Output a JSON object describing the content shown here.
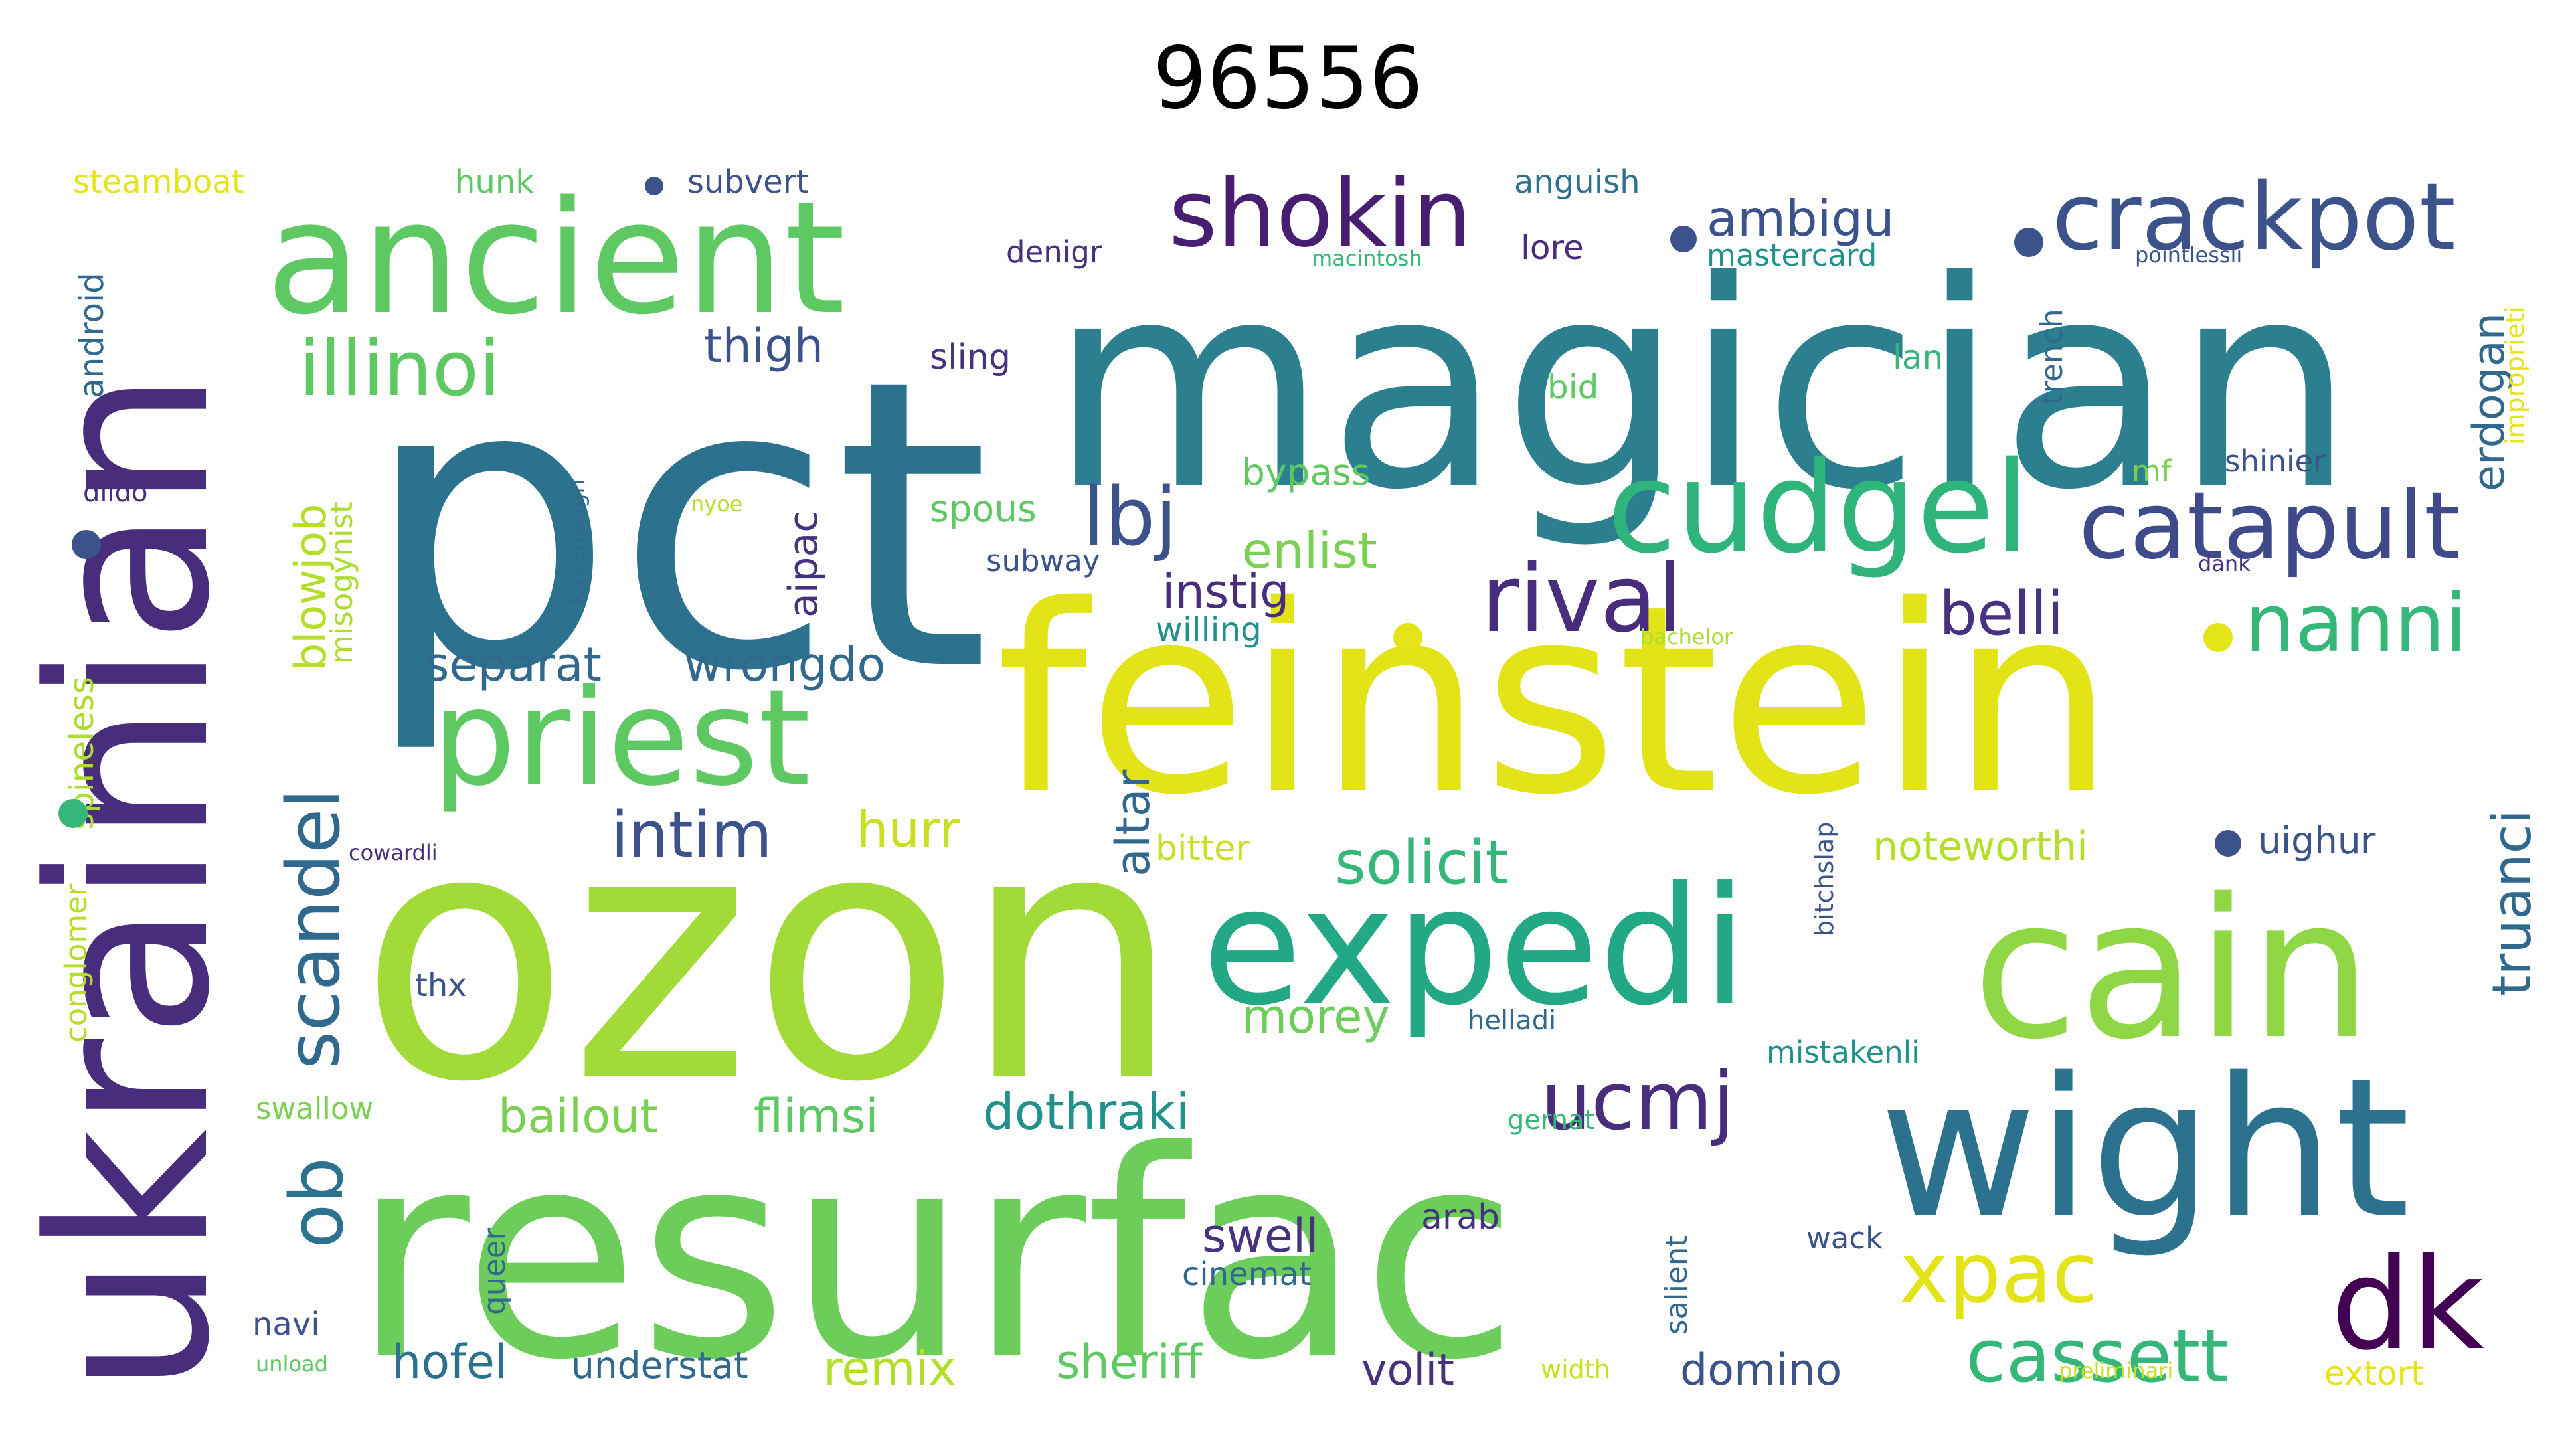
{
  "title": "96556",
  "palette": {
    "dark_purple": "#472d7b",
    "purple": "#46327e",
    "blue": "#3b528b",
    "teal_blue": "#2c728e",
    "teal": "#21918c",
    "green_teal": "#28ae80",
    "green": "#5ec962",
    "light_green": "#addc30",
    "yellow": "#e5e419"
  },
  "words": [
    {
      "text": "pct",
      "color": "#2c728e"
    },
    {
      "text": "magician",
      "color": "#2c7f8e"
    },
    {
      "text": "ozon",
      "color": "#a2da37"
    },
    {
      "text": "feinstein",
      "color": "#e2e418"
    },
    {
      "text": "resurfac",
      "color": "#6ccd5a"
    },
    {
      "text": "ukrainian",
      "color": "#472d7b"
    },
    {
      "text": "ancient",
      "color": "#5ec962"
    },
    {
      "text": "expedi",
      "color": "#22a884"
    },
    {
      "text": "cain",
      "color": "#8fd744"
    },
    {
      "text": "wight",
      "color": "#2c728e"
    },
    {
      "text": "priest",
      "color": "#5ec962"
    },
    {
      "text": "cudgel",
      "color": "#2fb47c"
    },
    {
      "text": "crackpot",
      "color": "#3b528b"
    },
    {
      "text": "catapult",
      "color": "#3e4a89"
    },
    {
      "text": "dk",
      "color": "#440154"
    },
    {
      "text": "shokin",
      "color": "#481f70"
    },
    {
      "text": "illinoi",
      "color": "#5ec962"
    },
    {
      "text": "rival",
      "color": "#472d7b"
    },
    {
      "text": "nanni",
      "color": "#35b779"
    },
    {
      "text": "lbj",
      "color": "#3b528b"
    },
    {
      "text": "ucmj",
      "color": "#472d7b"
    },
    {
      "text": "xpac",
      "color": "#e2e418"
    },
    {
      "text": "cassett",
      "color": "#35b779"
    },
    {
      "text": "scandel",
      "color": "#31688e"
    },
    {
      "text": "ob",
      "color": "#2c728e"
    },
    {
      "text": "blowjob",
      "color": "#b5de2b"
    },
    {
      "text": "truanci",
      "color": "#31688e"
    },
    {
      "text": "erdogan",
      "color": "#31688e"
    },
    {
      "text": "belli",
      "color": "#46327e"
    },
    {
      "text": "solicit",
      "color": "#35b779"
    },
    {
      "text": "intim",
      "color": "#3b528b"
    },
    {
      "text": "ambigu",
      "color": "#3b528b"
    },
    {
      "text": "thigh",
      "color": "#3b528b"
    },
    {
      "text": "enlist",
      "color": "#7ad151"
    },
    {
      "text": "instig",
      "color": "#472d7b"
    },
    {
      "text": "separat",
      "color": "#31688e"
    },
    {
      "text": "wrongdo",
      "color": "#31688e"
    },
    {
      "text": "hurr",
      "color": "#c8e020"
    },
    {
      "text": "altar",
      "color": "#31688e"
    },
    {
      "text": "aipac",
      "color": "#46327e"
    },
    {
      "text": "morey",
      "color": "#6ccd5a"
    },
    {
      "text": "dothraki",
      "color": "#21918c"
    },
    {
      "text": "bailout",
      "color": "#7ad151"
    },
    {
      "text": "flimsi",
      "color": "#5ec962"
    },
    {
      "text": "swell",
      "color": "#46327e"
    },
    {
      "text": "hofel",
      "color": "#2c728e"
    },
    {
      "text": "understat",
      "color": "#31688e"
    },
    {
      "text": "remix",
      "color": "#b5de2b"
    },
    {
      "text": "sheriff",
      "color": "#5ec962"
    },
    {
      "text": "volit",
      "color": "#46327e"
    },
    {
      "text": "domino",
      "color": "#3b528b"
    },
    {
      "text": "noteworthi",
      "color": "#b5de2b"
    },
    {
      "text": "uighur",
      "color": "#3b528b"
    },
    {
      "text": "extort",
      "color": "#e5e419"
    },
    {
      "text": "steamboat",
      "color": "#e5e419"
    },
    {
      "text": "hunk",
      "color": "#5ec962"
    },
    {
      "text": "subvert",
      "color": "#3b528b"
    },
    {
      "text": "anguish",
      "color": "#2c728e"
    },
    {
      "text": "denigr",
      "color": "#46327e"
    },
    {
      "text": "macintosh",
      "color": "#35b779"
    },
    {
      "text": "lore",
      "color": "#472d7b"
    },
    {
      "text": "mastercard",
      "color": "#21918c"
    },
    {
      "text": "pointlessli",
      "color": "#3b528b"
    },
    {
      "text": "improprieti",
      "color": "#e5e419"
    },
    {
      "text": "android",
      "color": "#31688e"
    },
    {
      "text": "sling",
      "color": "#46327e"
    },
    {
      "text": "bid",
      "color": "#5ec962"
    },
    {
      "text": "lan",
      "color": "#35b779"
    },
    {
      "text": "trench",
      "color": "#31688e"
    },
    {
      "text": "dildo",
      "color": "#472d7b"
    },
    {
      "text": "misogynist",
      "color": "#addc30"
    },
    {
      "text": "kavanaugh",
      "color": "#31688e"
    },
    {
      "text": "nyoe",
      "color": "#b5de2b"
    },
    {
      "text": "spous",
      "color": "#5ec962"
    },
    {
      "text": "subway",
      "color": "#3b528b"
    },
    {
      "text": "bypass",
      "color": "#5ec962"
    },
    {
      "text": "mf",
      "color": "#7ad151"
    },
    {
      "text": "shinier",
      "color": "#3b528b"
    },
    {
      "text": "dank",
      "color": "#46327e"
    },
    {
      "text": "willing",
      "color": "#21918c"
    },
    {
      "text": "bachelor",
      "color": "#addc30"
    },
    {
      "text": "spineless",
      "color": "#addc30"
    },
    {
      "text": "conglomer",
      "color": "#b5de2b"
    },
    {
      "text": "cowardli",
      "color": "#472d7b"
    },
    {
      "text": "bitter",
      "color": "#c8e020"
    },
    {
      "text": "bitchslap",
      "color": "#3b528b"
    },
    {
      "text": "thx",
      "color": "#3b528b"
    },
    {
      "text": "helladi",
      "color": "#31688e"
    },
    {
      "text": "mistakenli",
      "color": "#21918c"
    },
    {
      "text": "swallow",
      "color": "#7ad151"
    },
    {
      "text": "gernat",
      "color": "#35b779"
    },
    {
      "text": "queer",
      "color": "#31688e"
    },
    {
      "text": "arab",
      "color": "#46327e"
    },
    {
      "text": "salient",
      "color": "#31688e"
    },
    {
      "text": "wack",
      "color": "#3b528b"
    },
    {
      "text": "cinemat",
      "color": "#31688e"
    },
    {
      "text": "navi",
      "color": "#3b528b"
    },
    {
      "text": "unload",
      "color": "#5ec962"
    },
    {
      "text": "width",
      "color": "#c8e020"
    },
    {
      "text": "preliminari",
      "color": "#c8e020"
    }
  ]
}
